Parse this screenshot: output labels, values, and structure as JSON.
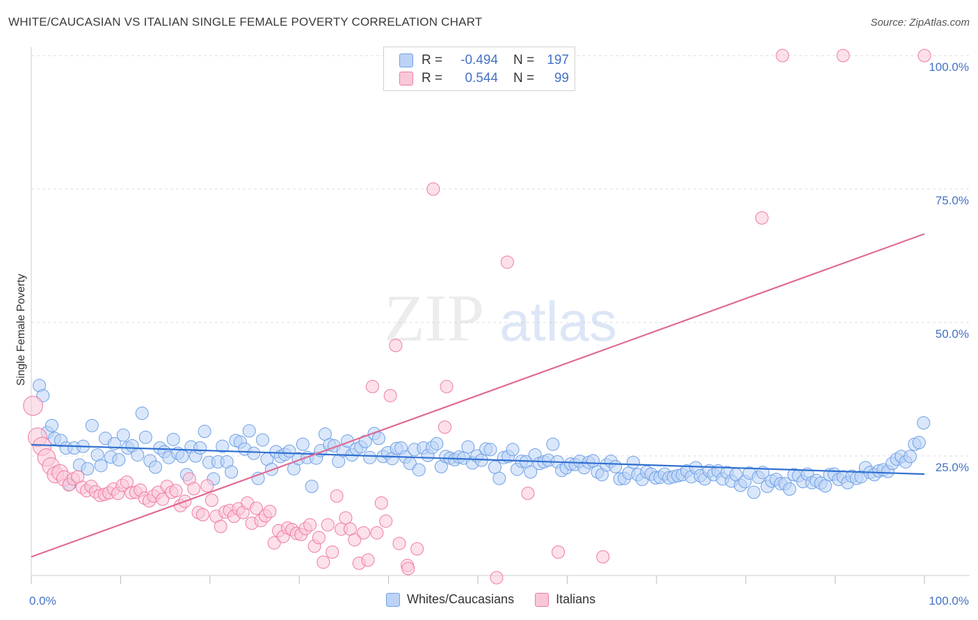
{
  "header": {
    "title": "WHITE/CAUCASIAN VS ITALIAN SINGLE FEMALE POVERTY CORRELATION CHART",
    "source": "Source: ZipAtlas.com"
  },
  "watermark": {
    "zip": "ZIP",
    "atlas": "atlas"
  },
  "legend": {
    "rows": [
      {
        "r_label": "R =",
        "r_value": "-0.494",
        "n_label": "N =",
        "n_value": "197",
        "color": "#6fa0e6"
      },
      {
        "r_label": "R =",
        "r_value": "0.544",
        "n_label": "N =",
        "n_value": "99",
        "color": "#f07aa0"
      }
    ]
  },
  "bottom_legend": {
    "items": [
      {
        "label": "Whites/Caucasians",
        "color": "#6fa0e6"
      },
      {
        "label": "Italians",
        "color": "#f07aa0"
      }
    ]
  },
  "chart_data": {
    "type": "scatter",
    "ylabel": "Single Female Poverty",
    "xlim": [
      0,
      100
    ],
    "ylim": [
      0,
      100
    ],
    "x_tick_labels": [
      "0.0%",
      "100.0%"
    ],
    "y_tick_labels": [
      "25.0%",
      "50.0%",
      "75.0%",
      "100.0%"
    ],
    "y_ticks": [
      25,
      50,
      75,
      100
    ],
    "grid": "horizontal dashed",
    "series": [
      {
        "name": "Whites/Caucasians",
        "color": "#6fa0e6",
        "trend": {
          "x": [
            0,
            100
          ],
          "y": [
            27.1,
            21.6
          ]
        },
        "points": [
          [
            0.9,
            38.2
          ],
          [
            1.3,
            36.3
          ],
          [
            1.8,
            29.4
          ],
          [
            2.3,
            30.7
          ],
          [
            2.6,
            28.3
          ],
          [
            3.3,
            27.9
          ],
          [
            3.9,
            26.5
          ],
          [
            4.3,
            19.7
          ],
          [
            4.8,
            26.5
          ],
          [
            5.4,
            23.3
          ],
          [
            5.8,
            26.8
          ],
          [
            6.3,
            22.6
          ],
          [
            6.8,
            30.7
          ],
          [
            7.4,
            25.2
          ],
          [
            7.8,
            23.2
          ],
          [
            8.3,
            28.3
          ],
          [
            8.9,
            24.8
          ],
          [
            9.3,
            27.3
          ],
          [
            9.8,
            24.3
          ],
          [
            10.3,
            28.9
          ],
          [
            10.8,
            26.5
          ],
          [
            11.3,
            26.9
          ],
          [
            11.9,
            25.2
          ],
          [
            12.4,
            33.0
          ],
          [
            12.8,
            28.5
          ],
          [
            13.3,
            24.1
          ],
          [
            13.9,
            22.9
          ],
          [
            14.4,
            26.5
          ],
          [
            14.9,
            25.8
          ],
          [
            15.4,
            24.7
          ],
          [
            15.9,
            28.1
          ],
          [
            16.4,
            25.5
          ],
          [
            16.9,
            24.9
          ],
          [
            17.4,
            21.5
          ],
          [
            17.9,
            26.7
          ],
          [
            18.4,
            25.0
          ],
          [
            18.9,
            26.5
          ],
          [
            19.4,
            29.6
          ],
          [
            19.9,
            23.8
          ],
          [
            20.4,
            20.7
          ],
          [
            20.9,
            23.9
          ],
          [
            21.4,
            26.8
          ],
          [
            21.9,
            23.9
          ],
          [
            22.4,
            22.0
          ],
          [
            22.9,
            27.9
          ],
          [
            23.4,
            27.6
          ],
          [
            23.9,
            26.3
          ],
          [
            24.4,
            29.7
          ],
          [
            24.9,
            25.5
          ],
          [
            25.4,
            20.8
          ],
          [
            25.9,
            28.0
          ],
          [
            26.4,
            24.4
          ],
          [
            26.9,
            22.5
          ],
          [
            27.4,
            25.8
          ],
          [
            27.9,
            24.9
          ],
          [
            28.4,
            25.3
          ],
          [
            28.9,
            25.9
          ],
          [
            29.4,
            22.6
          ],
          [
            29.9,
            24.5
          ],
          [
            30.4,
            27.2
          ],
          [
            30.9,
            24.7
          ],
          [
            31.4,
            19.3
          ],
          [
            31.9,
            24.6
          ],
          [
            32.4,
            26.0
          ],
          [
            32.9,
            29.1
          ],
          [
            33.4,
            27.1
          ],
          [
            33.9,
            26.9
          ],
          [
            34.4,
            24.0
          ],
          [
            34.9,
            26.0
          ],
          [
            35.4,
            27.8
          ],
          [
            35.9,
            25.2
          ],
          [
            36.4,
            26.3
          ],
          [
            36.9,
            26.7
          ],
          [
            37.4,
            27.7
          ],
          [
            37.9,
            24.7
          ],
          [
            38.4,
            29.2
          ],
          [
            38.9,
            28.3
          ],
          [
            39.4,
            24.9
          ],
          [
            39.9,
            25.6
          ],
          [
            40.4,
            24.5
          ],
          [
            40.9,
            26.4
          ],
          [
            41.4,
            26.5
          ],
          [
            41.9,
            24.8
          ],
          [
            42.4,
            23.6
          ],
          [
            42.9,
            26.2
          ],
          [
            43.4,
            22.4
          ],
          [
            43.9,
            26.5
          ],
          [
            44.4,
            25.1
          ],
          [
            44.9,
            26.6
          ],
          [
            45.4,
            27.3
          ],
          [
            45.9,
            23.0
          ],
          [
            46.4,
            24.9
          ],
          [
            46.9,
            24.6
          ],
          [
            47.4,
            24.3
          ],
          [
            47.9,
            24.8
          ],
          [
            48.4,
            24.6
          ],
          [
            48.9,
            26.7
          ],
          [
            49.4,
            23.7
          ],
          [
            49.9,
            25.0
          ],
          [
            50.4,
            24.2
          ],
          [
            50.9,
            26.3
          ],
          [
            51.4,
            26.2
          ],
          [
            51.9,
            22.9
          ],
          [
            52.4,
            20.8
          ],
          [
            52.9,
            24.7
          ],
          [
            53.4,
            24.9
          ],
          [
            53.9,
            26.2
          ],
          [
            54.4,
            22.5
          ],
          [
            54.9,
            24.0
          ],
          [
            55.4,
            23.9
          ],
          [
            55.9,
            22.0
          ],
          [
            56.4,
            25.2
          ],
          [
            56.9,
            23.6
          ],
          [
            57.4,
            23.9
          ],
          [
            57.9,
            24.2
          ],
          [
            58.4,
            27.2
          ],
          [
            58.9,
            23.9
          ],
          [
            59.4,
            22.3
          ],
          [
            59.9,
            22.8
          ],
          [
            60.4,
            23.5
          ],
          [
            60.9,
            23.4
          ],
          [
            61.4,
            24.0
          ],
          [
            61.9,
            22.8
          ],
          [
            62.4,
            23.8
          ],
          [
            62.9,
            24.1
          ],
          [
            63.4,
            22.0
          ],
          [
            63.9,
            21.5
          ],
          [
            64.4,
            23.3
          ],
          [
            64.9,
            24.0
          ],
          [
            65.4,
            23.0
          ],
          [
            65.9,
            20.7
          ],
          [
            66.4,
            20.8
          ],
          [
            66.9,
            21.8
          ],
          [
            67.4,
            23.8
          ],
          [
            67.9,
            21.5
          ],
          [
            68.4,
            20.6
          ],
          [
            68.9,
            22.0
          ],
          [
            69.4,
            21.6
          ],
          [
            69.9,
            20.9
          ],
          [
            70.4,
            21.0
          ],
          [
            70.9,
            21.6
          ],
          [
            71.4,
            20.9
          ],
          [
            71.9,
            21.1
          ],
          [
            72.4,
            21.3
          ],
          [
            72.9,
            21.5
          ],
          [
            73.4,
            22.2
          ],
          [
            73.9,
            21.1
          ],
          [
            74.4,
            22.8
          ],
          [
            74.9,
            21.3
          ],
          [
            75.4,
            20.7
          ],
          [
            75.9,
            22.2
          ],
          [
            76.4,
            21.5
          ],
          [
            76.9,
            22.2
          ],
          [
            77.4,
            20.7
          ],
          [
            77.9,
            21.9
          ],
          [
            78.4,
            20.3
          ],
          [
            78.9,
            21.5
          ],
          [
            79.4,
            19.5
          ],
          [
            79.9,
            20.2
          ],
          [
            80.4,
            21.8
          ],
          [
            80.9,
            18.2
          ],
          [
            81.4,
            21.0
          ],
          [
            81.9,
            21.9
          ],
          [
            82.4,
            19.3
          ],
          [
            82.9,
            20.3
          ],
          [
            83.4,
            20.6
          ],
          [
            83.9,
            19.8
          ],
          [
            84.4,
            19.8
          ],
          [
            84.9,
            18.8
          ],
          [
            85.4,
            21.5
          ],
          [
            85.9,
            21.3
          ],
          [
            86.4,
            20.2
          ],
          [
            86.9,
            21.6
          ],
          [
            87.4,
            20.0
          ],
          [
            87.9,
            20.4
          ],
          [
            88.4,
            19.9
          ],
          [
            88.9,
            19.4
          ],
          [
            89.4,
            21.5
          ],
          [
            89.9,
            21.6
          ],
          [
            90.4,
            20.6
          ],
          [
            90.9,
            21.1
          ],
          [
            91.4,
            20.0
          ],
          [
            91.9,
            21.2
          ],
          [
            92.4,
            20.8
          ],
          [
            92.9,
            21.1
          ],
          [
            93.4,
            22.8
          ],
          [
            93.9,
            21.9
          ],
          [
            94.4,
            21.5
          ],
          [
            94.9,
            22.2
          ],
          [
            95.4,
            22.4
          ],
          [
            95.9,
            22.1
          ],
          [
            96.4,
            23.6
          ],
          [
            96.9,
            24.4
          ],
          [
            97.4,
            24.9
          ],
          [
            97.9,
            23.9
          ],
          [
            98.4,
            24.9
          ],
          [
            98.9,
            27.2
          ],
          [
            99.4,
            27.5
          ],
          [
            99.9,
            31.2
          ]
        ]
      },
      {
        "name": "Italians",
        "color": "#f07aa0",
        "trend": {
          "x": [
            0,
            100
          ],
          "y": [
            6.1,
            66.6
          ]
        },
        "points": [
          [
            0.2,
            34.4
          ],
          [
            0.7,
            28.5
          ],
          [
            1.2,
            26.8
          ],
          [
            1.7,
            24.7
          ],
          [
            2.2,
            23.1
          ],
          [
            2.7,
            21.5
          ],
          [
            3.2,
            21.9
          ],
          [
            3.7,
            20.8
          ],
          [
            4.2,
            19.6
          ],
          [
            4.7,
            20.7
          ],
          [
            5.2,
            21.1
          ],
          [
            5.7,
            19.1
          ],
          [
            6.2,
            18.5
          ],
          [
            6.7,
            19.3
          ],
          [
            7.2,
            18.3
          ],
          [
            7.7,
            17.6
          ],
          [
            8.2,
            17.8
          ],
          [
            8.7,
            18.1
          ],
          [
            9.2,
            18.8
          ],
          [
            9.7,
            18.0
          ],
          [
            10.2,
            19.5
          ],
          [
            10.7,
            20.1
          ],
          [
            11.2,
            18.1
          ],
          [
            11.7,
            18.2
          ],
          [
            12.2,
            18.6
          ],
          [
            12.7,
            17.1
          ],
          [
            13.2,
            16.6
          ],
          [
            13.7,
            17.5
          ],
          [
            14.2,
            18.2
          ],
          [
            14.7,
            16.9
          ],
          [
            15.2,
            19.3
          ],
          [
            15.7,
            18.2
          ],
          [
            16.2,
            18.5
          ],
          [
            16.7,
            15.7
          ],
          [
            17.2,
            16.5
          ],
          [
            17.7,
            20.7
          ],
          [
            18.2,
            18.9
          ],
          [
            18.7,
            14.4
          ],
          [
            19.2,
            14.0
          ],
          [
            19.7,
            19.4
          ],
          [
            20.2,
            16.7
          ],
          [
            20.7,
            13.7
          ],
          [
            21.2,
            11.8
          ],
          [
            21.7,
            14.5
          ],
          [
            22.2,
            14.8
          ],
          [
            22.7,
            13.7
          ],
          [
            23.2,
            15.1
          ],
          [
            23.7,
            14.4
          ],
          [
            24.2,
            16.2
          ],
          [
            24.7,
            12.4
          ],
          [
            25.2,
            15.2
          ],
          [
            25.7,
            12.9
          ],
          [
            26.2,
            13.8
          ],
          [
            26.7,
            14.6
          ],
          [
            27.2,
            8.7
          ],
          [
            27.7,
            11.0
          ],
          [
            28.2,
            9.9
          ],
          [
            28.7,
            11.5
          ],
          [
            29.2,
            11.2
          ],
          [
            29.7,
            10.5
          ],
          [
            30.2,
            10.3
          ],
          [
            30.7,
            11.4
          ],
          [
            31.2,
            12.1
          ],
          [
            31.7,
            8.1
          ],
          [
            32.2,
            9.7
          ],
          [
            32.7,
            5.1
          ],
          [
            33.2,
            12.1
          ],
          [
            33.7,
            7.0
          ],
          [
            34.2,
            17.5
          ],
          [
            34.7,
            11.3
          ],
          [
            35.2,
            13.4
          ],
          [
            35.7,
            11.3
          ],
          [
            36.2,
            9.3
          ],
          [
            36.7,
            4.9
          ],
          [
            37.2,
            10.6
          ],
          [
            37.7,
            5.5
          ],
          [
            38.2,
            38.0
          ],
          [
            38.7,
            10.6
          ],
          [
            39.2,
            16.2
          ],
          [
            39.7,
            12.8
          ],
          [
            40.2,
            36.3
          ],
          [
            41.2,
            8.6
          ],
          [
            42.1,
            4.5
          ],
          [
            43.2,
            7.6
          ],
          [
            45.0,
            75.0
          ],
          [
            46.3,
            30.4
          ],
          [
            46.5,
            38.0
          ],
          [
            52.1,
            2.2
          ],
          [
            53.3,
            61.3
          ],
          [
            55.6,
            18.0
          ],
          [
            40.8,
            45.7
          ],
          [
            42.2,
            3.9
          ],
          [
            49.2,
            100
          ],
          [
            84.1,
            100
          ],
          [
            90.9,
            100
          ],
          [
            100,
            100
          ],
          [
            81.8,
            69.6
          ],
          [
            59.0,
            7.0
          ],
          [
            64.0,
            6.1
          ]
        ]
      }
    ]
  }
}
